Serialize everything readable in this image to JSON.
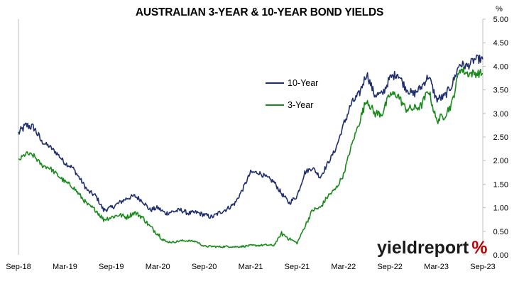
{
  "chart_data": {
    "type": "line",
    "title": "AUSTRALIAN 3-YEAR & 10-YEAR BOND YIELDS",
    "ylabel": "%",
    "ylim": [
      0,
      5
    ],
    "yticks": [
      "0.00",
      "0.50",
      "1.00",
      "1.50",
      "2.00",
      "2.50",
      "3.00",
      "3.50",
      "4.00",
      "4.50",
      "5.00"
    ],
    "x_tick_labels": [
      "Sep-18",
      "Mar-19",
      "Sep-19",
      "Mar-20",
      "Sep-20",
      "Mar-21",
      "Sep-21",
      "Mar-22",
      "Sep-22",
      "Mar-23",
      "Sep-23"
    ],
    "x_range": [
      "2018-09",
      "2023-09"
    ],
    "grid": "none",
    "legend_position": "upper-center",
    "colors": {
      "ten_year": "#1f2f6e",
      "three_year": "#198a1b"
    },
    "series": [
      {
        "name": "10-Year",
        "x": [
          "2018-09",
          "2018-10",
          "2018-11",
          "2018-12",
          "2019-01",
          "2019-02",
          "2019-03",
          "2019-04",
          "2019-05",
          "2019-06",
          "2019-07",
          "2019-08",
          "2019-09",
          "2019-10",
          "2019-11",
          "2019-12",
          "2020-01",
          "2020-02",
          "2020-03",
          "2020-04",
          "2020-05",
          "2020-06",
          "2020-07",
          "2020-08",
          "2020-09",
          "2020-10",
          "2020-11",
          "2020-12",
          "2021-01",
          "2021-02",
          "2021-03",
          "2021-04",
          "2021-05",
          "2021-06",
          "2021-07",
          "2021-08",
          "2021-09",
          "2021-10",
          "2021-11",
          "2021-12",
          "2022-01",
          "2022-02",
          "2022-03",
          "2022-04",
          "2022-05",
          "2022-06",
          "2022-07",
          "2022-08",
          "2022-09",
          "2022-10",
          "2022-11",
          "2022-12",
          "2023-01",
          "2023-02",
          "2023-03",
          "2023-04",
          "2023-05",
          "2023-06",
          "2023-07",
          "2023-08",
          "2023-09"
        ],
        "values": [
          2.58,
          2.75,
          2.7,
          2.4,
          2.3,
          2.15,
          1.95,
          1.85,
          1.6,
          1.35,
          1.25,
          0.95,
          1.0,
          1.1,
          1.2,
          1.25,
          1.15,
          0.95,
          1.0,
          0.88,
          0.92,
          0.95,
          0.88,
          0.9,
          0.85,
          0.8,
          0.9,
          0.98,
          1.1,
          1.4,
          1.75,
          1.75,
          1.65,
          1.55,
          1.3,
          1.1,
          1.25,
          1.75,
          1.85,
          1.65,
          1.95,
          2.25,
          2.75,
          3.2,
          3.4,
          3.85,
          3.4,
          3.4,
          3.75,
          3.85,
          3.55,
          3.4,
          3.55,
          3.8,
          3.3,
          3.35,
          3.6,
          4.05,
          4.0,
          4.15,
          4.15
        ]
      },
      {
        "name": "3-Year",
        "x": [
          "2018-09",
          "2018-10",
          "2018-11",
          "2018-12",
          "2019-01",
          "2019-02",
          "2019-03",
          "2019-04",
          "2019-05",
          "2019-06",
          "2019-07",
          "2019-08",
          "2019-09",
          "2019-10",
          "2019-11",
          "2019-12",
          "2020-01",
          "2020-02",
          "2020-03",
          "2020-04",
          "2020-05",
          "2020-06",
          "2020-07",
          "2020-08",
          "2020-09",
          "2020-10",
          "2020-11",
          "2020-12",
          "2021-01",
          "2021-02",
          "2021-03",
          "2021-04",
          "2021-05",
          "2021-06",
          "2021-07",
          "2021-08",
          "2021-09",
          "2021-10",
          "2021-11",
          "2021-12",
          "2022-01",
          "2022-02",
          "2022-03",
          "2022-04",
          "2022-05",
          "2022-06",
          "2022-07",
          "2022-08",
          "2022-09",
          "2022-10",
          "2022-11",
          "2022-12",
          "2023-01",
          "2023-02",
          "2023-03",
          "2023-04",
          "2023-05",
          "2023-06",
          "2023-07",
          "2023-08",
          "2023-09"
        ],
        "values": [
          2.0,
          2.15,
          2.1,
          1.9,
          1.85,
          1.7,
          1.55,
          1.45,
          1.25,
          1.05,
          0.95,
          0.75,
          0.8,
          0.85,
          0.8,
          0.9,
          0.8,
          0.6,
          0.45,
          0.28,
          0.27,
          0.3,
          0.3,
          0.28,
          0.18,
          0.18,
          0.17,
          0.18,
          0.17,
          0.18,
          0.2,
          0.2,
          0.21,
          0.2,
          0.45,
          0.35,
          0.25,
          0.6,
          0.95,
          1.0,
          1.25,
          1.4,
          1.7,
          2.3,
          2.8,
          3.3,
          3.0,
          3.0,
          3.4,
          3.4,
          3.1,
          3.1,
          3.15,
          3.5,
          2.85,
          2.95,
          3.2,
          3.95,
          3.85,
          3.85,
          3.85
        ]
      }
    ],
    "logo": {
      "text_main": "yieldreport",
      "text_symbol": "%"
    }
  }
}
